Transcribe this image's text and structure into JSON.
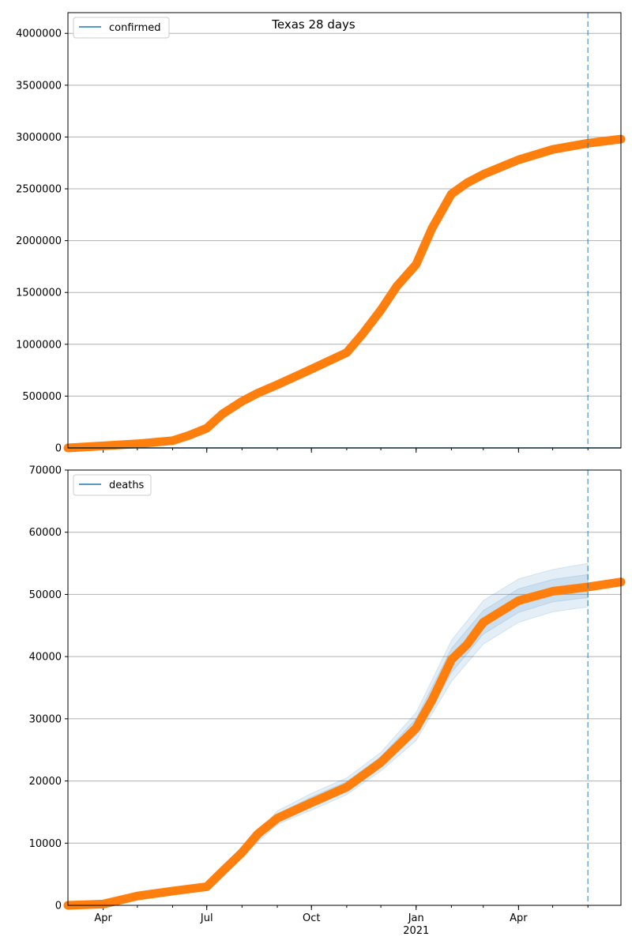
{
  "figure": {
    "title": "Texas 28 days",
    "colors": {
      "observed": "#ff7f0e",
      "model_line": "#1f77b4",
      "band": "#1f77b4",
      "grid": "#b0b0b0",
      "vline": "#1f77b4"
    }
  },
  "chart_data": [
    {
      "type": "line",
      "id": "confirmed",
      "title": "Texas 28 days",
      "xlabel": "",
      "ylabel": "",
      "xlim": [
        "2020-03-01",
        "2021-06-30"
      ],
      "ylim": [
        0,
        4200000
      ],
      "yticks": [
        0,
        500000,
        1000000,
        1500000,
        2000000,
        2500000,
        3000000,
        3500000,
        4000000
      ],
      "xticks": [
        {
          "date": "2020-04-01",
          "label": "Apr",
          "sublabel": ""
        },
        {
          "date": "2020-07-01",
          "label": "Jul",
          "sublabel": ""
        },
        {
          "date": "2020-10-01",
          "label": "Oct",
          "sublabel": ""
        },
        {
          "date": "2021-01-01",
          "label": "Jan",
          "sublabel": "2021"
        },
        {
          "date": "2021-04-01",
          "label": "Apr",
          "sublabel": ""
        }
      ],
      "grid": "horizontal",
      "legend": {
        "position": "top-left",
        "entries": [
          "confirmed"
        ]
      },
      "vline_date": "2021-06-01",
      "series": [
        {
          "name": "confirmed",
          "role": "observed",
          "x": [
            "2020-03-01",
            "2020-04-01",
            "2020-05-01",
            "2020-06-01",
            "2020-06-15",
            "2020-07-01",
            "2020-07-15",
            "2020-08-01",
            "2020-08-15",
            "2020-09-01",
            "2020-10-01",
            "2020-11-01",
            "2020-11-15",
            "2020-12-01",
            "2020-12-15",
            "2021-01-01",
            "2021-01-15",
            "2021-02-01",
            "2021-02-15",
            "2021-03-01",
            "2021-04-01",
            "2021-05-01",
            "2021-06-01",
            "2021-06-30"
          ],
          "values": [
            0,
            20000,
            40000,
            70000,
            120000,
            190000,
            330000,
            450000,
            530000,
            610000,
            760000,
            920000,
            1100000,
            1330000,
            1560000,
            1770000,
            2120000,
            2450000,
            2560000,
            2640000,
            2780000,
            2880000,
            2940000,
            2980000
          ]
        },
        {
          "name": "confirmed",
          "role": "model",
          "x": [
            "2020-03-01",
            "2021-06-30"
          ],
          "values": [
            0,
            0
          ]
        }
      ]
    },
    {
      "type": "line",
      "id": "deaths",
      "title": "",
      "xlabel": "",
      "ylabel": "",
      "xlim": [
        "2020-03-01",
        "2021-06-30"
      ],
      "ylim": [
        0,
        70000
      ],
      "yticks": [
        0,
        10000,
        20000,
        30000,
        40000,
        50000,
        60000,
        70000
      ],
      "xticks": [
        {
          "date": "2020-04-01",
          "label": "Apr",
          "sublabel": ""
        },
        {
          "date": "2020-07-01",
          "label": "Jul",
          "sublabel": ""
        },
        {
          "date": "2020-10-01",
          "label": "Oct",
          "sublabel": ""
        },
        {
          "date": "2021-01-01",
          "label": "Jan",
          "sublabel": "2021"
        },
        {
          "date": "2021-04-01",
          "label": "Apr",
          "sublabel": ""
        }
      ],
      "grid": "horizontal",
      "legend": {
        "position": "top-left",
        "entries": [
          "deaths"
        ]
      },
      "vline_date": "2021-06-01",
      "series": [
        {
          "name": "deaths",
          "role": "observed",
          "x": [
            "2020-03-01",
            "2020-04-01",
            "2020-05-01",
            "2020-06-01",
            "2020-07-01",
            "2020-07-15",
            "2020-08-01",
            "2020-08-15",
            "2020-09-01",
            "2020-10-01",
            "2020-11-01",
            "2020-12-01",
            "2021-01-01",
            "2021-01-15",
            "2021-02-01",
            "2021-02-15",
            "2021-03-01",
            "2021-04-01",
            "2021-05-01",
            "2021-06-01",
            "2021-06-30"
          ],
          "values": [
            0,
            200,
            1500,
            2300,
            3000,
            5500,
            8500,
            11500,
            14000,
            16500,
            19000,
            23000,
            28500,
            33000,
            39500,
            42000,
            45500,
            49000,
            50500,
            51200,
            52000
          ]
        }
      ],
      "bands": [
        {
          "x": [
            "2020-07-01",
            "2020-08-01",
            "2020-09-01",
            "2020-10-01",
            "2020-11-01",
            "2020-12-01",
            "2021-01-01",
            "2021-02-01",
            "2021-03-01",
            "2021-04-01",
            "2021-05-01",
            "2021-06-01"
          ],
          "lower": [
            2800,
            7900,
            13000,
            15300,
            17800,
            21600,
            26500,
            36000,
            42000,
            45500,
            47200,
            48000
          ],
          "upper": [
            3200,
            9000,
            15200,
            18000,
            20500,
            24600,
            31000,
            42600,
            49000,
            52500,
            54000,
            55000
          ]
        },
        {
          "x": [
            "2020-07-01",
            "2020-08-01",
            "2020-09-01",
            "2020-10-01",
            "2020-11-01",
            "2020-12-01",
            "2021-01-01",
            "2021-02-01",
            "2021-03-01",
            "2021-04-01",
            "2021-05-01",
            "2021-06-01"
          ],
          "lower": [
            2900,
            8200,
            13500,
            15900,
            18300,
            22200,
            27400,
            37400,
            43600,
            47100,
            48800,
            49500
          ],
          "upper": [
            3100,
            8700,
            14700,
            17400,
            19900,
            23900,
            30000,
            41300,
            47400,
            50900,
            52400,
            53200
          ]
        }
      ]
    }
  ]
}
